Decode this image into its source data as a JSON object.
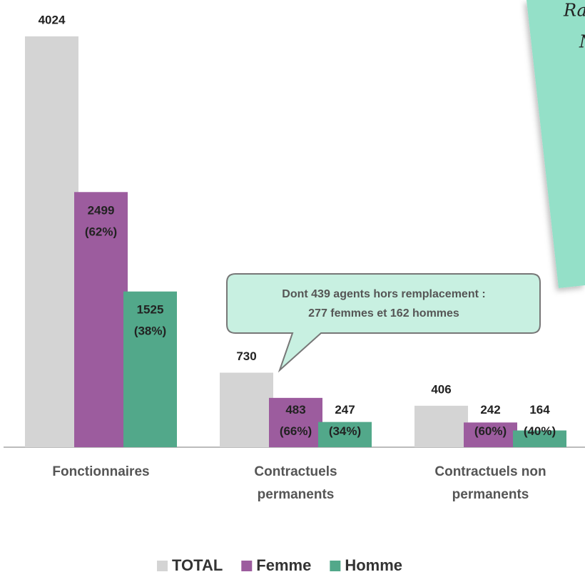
{
  "chart_data": {
    "type": "bar",
    "categories": [
      "Fonctionnaires",
      "Contractuels permanents",
      "Contractuels non permanents"
    ],
    "series": [
      {
        "name": "TOTAL",
        "color": "#d4d4d4",
        "values": [
          4024,
          730,
          406
        ],
        "value_labels": [
          "4024",
          "730",
          "406"
        ]
      },
      {
        "name": "Femme",
        "color": "#9c5c9e",
        "values": [
          2499,
          483,
          242
        ],
        "value_labels": [
          "2499 (62%)",
          "483 (66%)",
          "242 (60%)"
        ]
      },
      {
        "name": "Homme",
        "color": "#52a88a",
        "values": [
          1525,
          247,
          164
        ],
        "value_labels": [
          "1525 (38%)",
          "247 (34%)",
          "164 (40%)"
        ]
      }
    ],
    "ylim": [
      0,
      4024
    ],
    "callout": [
      "Dont 439 agents hors remplacement :",
      "277 femmes et 162 hommes"
    ],
    "notes": [
      "Ra",
      "N"
    ]
  }
}
